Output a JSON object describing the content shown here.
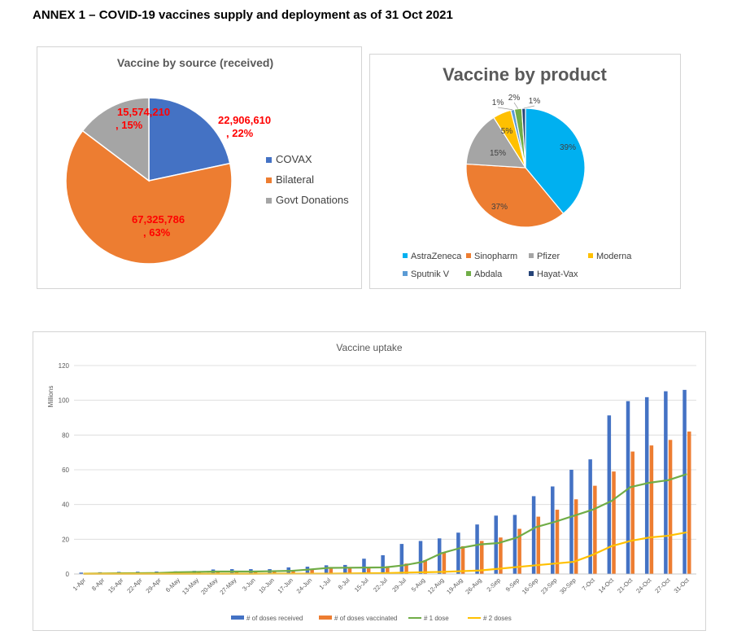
{
  "header": {
    "title": "ANNEX 1 – COVID-19 vaccines supply and deployment as of 31 Oct 2021"
  },
  "chart_data": [
    {
      "type": "pie",
      "title": "Vaccine by source (received)",
      "slices": [
        {
          "name": "COVAX",
          "value": 22906610,
          "percent": 22,
          "color": "#4472C4",
          "label_value": "22,906,610",
          "label_pct": ", 22%"
        },
        {
          "name": "Bilateral",
          "value": 67325786,
          "percent": 63,
          "color": "#ED7D31",
          "label_value": "67,325,786",
          "label_pct": ", 63%"
        },
        {
          "name": "Govt Donations",
          "value": 15574210,
          "percent": 15,
          "color": "#A5A5A5",
          "label_value": "15,574,210",
          "label_pct": ", 15%"
        }
      ],
      "legend": "right",
      "label_color": "#FF0000"
    },
    {
      "type": "pie",
      "title": "Vaccine by product",
      "slices": [
        {
          "name": "AstraZeneca",
          "percent": 39,
          "color": "#00B0F0",
          "label": "39%"
        },
        {
          "name": "Sinopharm",
          "percent": 37,
          "color": "#ED7D31",
          "label": "37%"
        },
        {
          "name": "Pfizer",
          "percent": 15,
          "color": "#A5A5A5",
          "label": "15%"
        },
        {
          "name": "Moderna",
          "percent": 5,
          "color": "#FFC000",
          "label": "5%"
        },
        {
          "name": "Sputnik V",
          "percent": 1,
          "color": "#5B9BD5",
          "label": "1%"
        },
        {
          "name": "Abdala",
          "percent": 2,
          "color": "#70AD47",
          "label": "2%"
        },
        {
          "name": "Hayat-Vax",
          "percent": 1,
          "color": "#264478",
          "label": "1%"
        }
      ],
      "legend": "bottom"
    },
    {
      "type": "bar",
      "title": "Vaccine uptake",
      "ylabel": "Millions",
      "ylim": [
        0,
        120
      ],
      "yticks": [
        0,
        20,
        40,
        60,
        80,
        100,
        120
      ],
      "grid": true,
      "legend": "bottom",
      "categories": [
        "1-Apr",
        "8-Apr",
        "15-Apr",
        "22-Apr",
        "29-Apr",
        "6-May",
        "13-May",
        "20-May",
        "27-May",
        "3-Jun",
        "10-Jun",
        "17-Jun",
        "24-Jun",
        "1-Jul",
        "8-Jul",
        "15-Jul",
        "22-Jul",
        "29-Jul",
        "5-Aug",
        "12-Aug",
        "19-Aug",
        "26-Aug",
        "2-Sep",
        "9-Sep",
        "16-Sep",
        "23-Sep",
        "30-Sep",
        "7-Oct",
        "14-Oct",
        "21-Oct",
        "24-Oct",
        "27-Oct",
        "31-Oct"
      ],
      "series": [
        {
          "name": "# of doses received",
          "kind": "bar",
          "color": "#4472C4",
          "values": [
            0.8,
            1.0,
            1.2,
            1.3,
            1.4,
            1.5,
            1.8,
            2.6,
            2.8,
            2.8,
            2.8,
            3.8,
            4.2,
            5.0,
            5.2,
            8.8,
            10.8,
            17.3,
            19.0,
            20.5,
            23.8,
            28.5,
            33.6,
            34.0,
            44.8,
            50.4,
            60.0,
            66.0,
            91.3,
            99.5,
            101.8,
            105.2,
            106.0
          ]
        },
        {
          "name": "# of doses vaccinated",
          "kind": "bar",
          "color": "#ED7D31",
          "values": [
            0.3,
            0.4,
            0.5,
            0.6,
            0.7,
            0.9,
            1.0,
            1.2,
            1.4,
            1.5,
            1.7,
            2.0,
            2.6,
            3.6,
            4.0,
            4.2,
            4.5,
            6.0,
            8.0,
            12.5,
            16.0,
            19.0,
            21.0,
            26.0,
            33.0,
            37.0,
            43.0,
            50.8,
            59.0,
            70.5,
            74.0,
            77.2,
            82.0
          ]
        },
        {
          "name": "# 1 dose",
          "kind": "line",
          "color": "#70AD47",
          "values": [
            0.2,
            0.3,
            0.4,
            0.5,
            0.6,
            1.0,
            1.2,
            1.4,
            1.4,
            1.4,
            1.6,
            1.8,
            2.6,
            3.5,
            3.6,
            3.7,
            3.8,
            5.0,
            7.0,
            12.0,
            15.0,
            17.0,
            17.8,
            21.0,
            27.0,
            30.0,
            33.5,
            37.0,
            42.0,
            50.0,
            52.5,
            54.0,
            57.5
          ]
        },
        {
          "name": "# 2 doses",
          "kind": "line",
          "color": "#FFC000",
          "values": [
            0.1,
            0.1,
            0.1,
            0.1,
            0.1,
            0.1,
            0.1,
            0.1,
            0.1,
            0.1,
            0.2,
            0.2,
            0.2,
            0.2,
            0.3,
            0.4,
            0.5,
            0.8,
            1.0,
            1.2,
            1.6,
            2.0,
            3.0,
            4.0,
            5.0,
            6.0,
            7.0,
            11.0,
            16.0,
            19.0,
            21.0,
            22.0,
            24.0
          ]
        }
      ]
    }
  ]
}
